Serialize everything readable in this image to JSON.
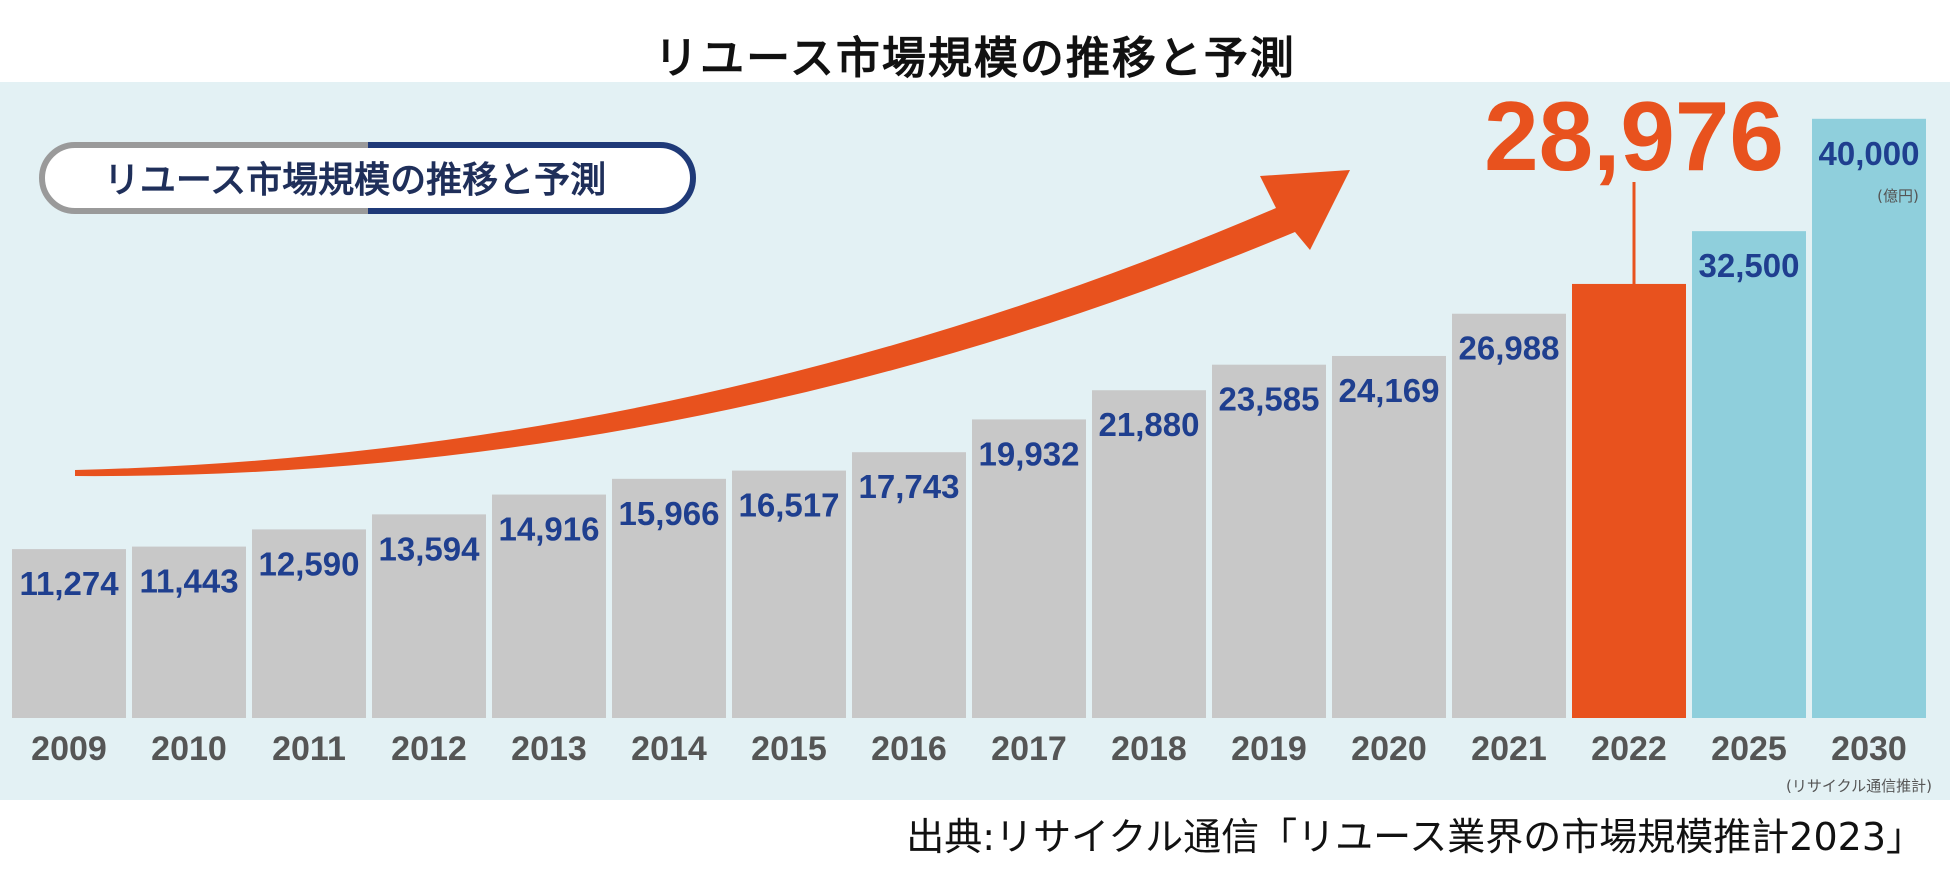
{
  "page_title": "リユース市場規模の推移と予測",
  "source_note": "出典:リサイクル通信「リユース業界の市場規模推計2023」",
  "chart_data": {
    "type": "bar",
    "title": "リユース市場規模の推移と予測",
    "unit": "(億円)",
    "estimate_note": "(リサイクル通信推計)",
    "categories": [
      "2009",
      "2010",
      "2011",
      "2012",
      "2013",
      "2014",
      "2015",
      "2016",
      "2017",
      "2018",
      "2019",
      "2020",
      "2021",
      "2022",
      "2025",
      "2030"
    ],
    "values": [
      11274,
      11443,
      12590,
      13594,
      14916,
      15966,
      16517,
      17743,
      19932,
      21880,
      23585,
      24169,
      26988,
      28976,
      32500,
      40000
    ],
    "value_labels": [
      "11,274",
      "11,443",
      "12,590",
      "13,594",
      "14,916",
      "15,966",
      "16,517",
      "17,743",
      "19,932",
      "21,880",
      "23,585",
      "24,169",
      "26,988",
      "28,976",
      "32,500",
      "40,000"
    ],
    "series_kind": [
      "actual",
      "actual",
      "actual",
      "actual",
      "actual",
      "actual",
      "actual",
      "actual",
      "actual",
      "actual",
      "actual",
      "actual",
      "actual",
      "highlight",
      "forecast",
      "forecast"
    ],
    "colors": {
      "actual": "#c8c8c8",
      "highlight": "#e8521e",
      "forecast": "#8fcfdc",
      "value_text": "#1f3f8f",
      "year_text": "#555555",
      "arrow": "#e8521e",
      "panel_bg": "#e3f1f4"
    },
    "ylim": [
      0,
      40000
    ],
    "legend": "none",
    "grid": false
  }
}
